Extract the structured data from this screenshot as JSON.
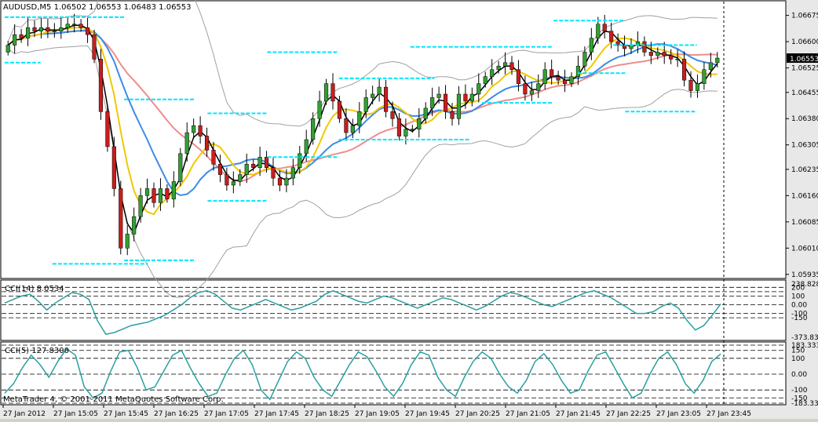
{
  "header": {
    "symbol_info": "AUDUSD,M5  1.06502 1.06553 1.06483 1.06553"
  },
  "footer": {
    "copyright": "MetaTrader 4, © 2001-2011 MetaQuotes Software Corp."
  },
  "colors": {
    "bg": "#ffffff",
    "border": "#000000",
    "bull": "#32a032",
    "bear": "#c81e1e",
    "ma_black": "#000000",
    "ma_yellow": "#f0c800",
    "ma_blue": "#3c8ce6",
    "ma_salmon": "#f08c8c",
    "bands": "#a0a0a0",
    "levels": "#00e6ff",
    "cci": "#2aa0a0"
  },
  "chart_data": [
    {
      "type": "candlestick",
      "title": "AUDUSD,M5",
      "ohlc_last": {
        "open": "1.06502",
        "high": "1.06553",
        "low": "1.06483",
        "close": "1.06553"
      },
      "y_ticks": [
        "1.06675",
        "1.06600",
        "1.06525",
        "1.06455",
        "1.06380",
        "1.06305",
        "1.06235",
        "1.06160",
        "1.06085",
        "1.06010",
        "1.05935"
      ],
      "ylim": [
        1.0593,
        1.0671
      ],
      "current_price_label": "1.06553",
      "x_ticks": [
        "27 Jan 2012",
        "27 Jan 15:05",
        "27 Jan 15:45",
        "27 Jan 16:25",
        "27 Jan 17:05",
        "27 Jan 17:45",
        "27 Jan 18:25",
        "27 Jan 19:05",
        "27 Jan 19:45",
        "27 Jan 20:25",
        "27 Jan 21:05",
        "27 Jan 21:45",
        "27 Jan 22:25",
        "27 Jan 23:05",
        "27 Jan 23:45"
      ],
      "closes": [
        1.0659,
        1.0662,
        1.0661,
        1.0664,
        1.0663,
        1.0664,
        1.0663,
        1.0663,
        1.0664,
        1.0665,
        1.0665,
        1.0664,
        1.0662,
        1.0655,
        1.064,
        1.063,
        1.0618,
        1.0601,
        1.0605,
        1.061,
        1.0616,
        1.0618,
        1.0614,
        1.0618,
        1.0615,
        1.062,
        1.0628,
        1.0634,
        1.0636,
        1.0633,
        1.0629,
        1.0625,
        1.0622,
        1.0619,
        1.062,
        1.0622,
        1.0625,
        1.0624,
        1.0627,
        1.0624,
        1.0621,
        1.0619,
        1.0621,
        1.0624,
        1.0628,
        1.0632,
        1.0638,
        1.0643,
        1.0648,
        1.0643,
        1.0638,
        1.0634,
        1.0636,
        1.064,
        1.0644,
        1.0645,
        1.0647,
        1.064,
        1.0638,
        1.0633,
        1.0635,
        1.0635,
        1.0638,
        1.0641,
        1.0644,
        1.0645,
        1.064,
        1.0638,
        1.0645,
        1.0643,
        1.0645,
        1.0648,
        1.065,
        1.0652,
        1.0653,
        1.0654,
        1.0652,
        1.0648,
        1.0645,
        1.0646,
        1.0648,
        1.0652,
        1.065,
        1.0649,
        1.0648,
        1.065,
        1.0653,
        1.0657,
        1.0661,
        1.0665,
        1.0663,
        1.066,
        1.0659,
        1.0658,
        1.0659,
        1.066,
        1.0657,
        1.0656,
        1.0657,
        1.0656,
        1.0655,
        1.0655,
        1.0649,
        1.0646,
        1.0648,
        1.0652,
        1.0654,
        1.06553
      ],
      "level_segments": [
        {
          "price": 1.0667,
          "from": 0,
          "to": 10
        },
        {
          "price": 1.0654,
          "from": 0,
          "to": 3
        },
        {
          "price": 1.06435,
          "from": 10,
          "to": 16
        },
        {
          "price": 1.05965,
          "from": 4,
          "to": 12
        },
        {
          "price": 1.05975,
          "from": 10,
          "to": 16
        },
        {
          "price": 1.06395,
          "from": 17,
          "to": 22
        },
        {
          "price": 1.06145,
          "from": 17,
          "to": 22
        },
        {
          "price": 1.0627,
          "from": 22,
          "to": 28
        },
        {
          "price": 1.0657,
          "from": 22,
          "to": 28
        },
        {
          "price": 1.06495,
          "from": 28,
          "to": 36
        },
        {
          "price": 1.0632,
          "from": 28,
          "to": 39
        },
        {
          "price": 1.06585,
          "from": 34,
          "to": 46
        },
        {
          "price": 1.06425,
          "from": 40,
          "to": 46
        },
        {
          "price": 1.0666,
          "from": 46,
          "to": 52
        },
        {
          "price": 1.0651,
          "from": 48,
          "to": 52
        },
        {
          "price": 1.0659,
          "from": 51,
          "to": 58
        },
        {
          "price": 1.064,
          "from": 52,
          "to": 58
        }
      ]
    },
    {
      "type": "line",
      "title": "CCI(14) 8.0534",
      "y_ticks": [
        "238.828",
        "200",
        "100",
        "0.00",
        "-100",
        "-150",
        "-373.839"
      ],
      "levels": [
        200,
        150,
        100,
        0,
        -100,
        -150
      ],
      "ylim": [
        -373.839,
        238.828
      ],
      "values": [
        20,
        60,
        100,
        120,
        40,
        -60,
        20,
        80,
        140,
        120,
        60,
        -180,
        -340,
        -320,
        -280,
        -240,
        -220,
        -200,
        -160,
        -120,
        -60,
        0,
        80,
        140,
        160,
        120,
        40,
        -40,
        -60,
        -20,
        20,
        60,
        20,
        -20,
        -60,
        -40,
        0,
        40,
        120,
        160,
        120,
        80,
        40,
        20,
        60,
        100,
        80,
        40,
        0,
        -40,
        0,
        40,
        80,
        60,
        20,
        -20,
        -60,
        -20,
        40,
        100,
        140,
        120,
        80,
        40,
        0,
        -20,
        20,
        60,
        100,
        140,
        160,
        120,
        80,
        20,
        -40,
        -100,
        -100,
        -80,
        -20,
        20,
        -40,
        -180,
        -290,
        -240,
        -120,
        8.05
      ]
    },
    {
      "type": "line",
      "title": "CCI(5) 127.8300",
      "y_ticks": [
        "183.333",
        "150",
        "100",
        "0.00",
        "-100",
        "-150",
        "-183.333"
      ],
      "levels": [
        183.333,
        150,
        100,
        0,
        -100,
        -150,
        -183.333
      ],
      "ylim": [
        -183.333,
        183.333
      ],
      "values": [
        -120,
        -60,
        40,
        120,
        60,
        -20,
        80,
        160,
        120,
        -80,
        -150,
        -120,
        20,
        140,
        150,
        40,
        -100,
        -80,
        20,
        120,
        150,
        40,
        -60,
        -140,
        -120,
        0,
        100,
        150,
        60,
        -100,
        -160,
        -40,
        80,
        140,
        100,
        -20,
        -100,
        -140,
        -40,
        60,
        140,
        110,
        20,
        -80,
        -140,
        -60,
        60,
        140,
        120,
        -20,
        -100,
        -140,
        -20,
        80,
        140,
        100,
        0,
        -80,
        -120,
        -40,
        80,
        130,
        60,
        -40,
        -120,
        -100,
        20,
        120,
        140,
        40,
        -60,
        -150,
        -120,
        0,
        100,
        140,
        60,
        -60,
        -120,
        -40,
        80,
        127.83
      ]
    }
  ]
}
